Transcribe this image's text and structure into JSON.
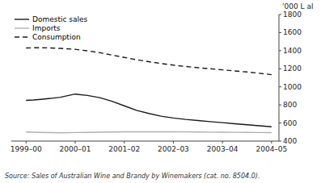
{
  "chart_data": {
    "type": "line",
    "y_label": "'000 L al",
    "source": "Source: Sales of Australian Wine and Brandy by Winemakers (cat. no. 8504.0).",
    "x": [
      0,
      0.15,
      0.3,
      0.5,
      0.7,
      1.0,
      1.25,
      1.5,
      1.75,
      2.0,
      2.25,
      2.5,
      2.75,
      3.0,
      3.25,
      3.5,
      3.75,
      4.0,
      4.25,
      4.5,
      4.75,
      5.0
    ],
    "series": [
      {
        "name": "Domestic sales",
        "color": "#1a1a1a",
        "line_style": "solid",
        "values": [
          850,
          855,
          862,
          872,
          885,
          920,
          905,
          880,
          840,
          790,
          740,
          705,
          675,
          655,
          640,
          628,
          615,
          604,
          592,
          581,
          570,
          558
        ]
      },
      {
        "name": "Imports",
        "color": "#b0b0b0",
        "line_style": "solid",
        "values": [
          500,
          498,
          496,
          494,
          492,
          495,
          496,
          498,
          500,
          502,
          503,
          503,
          503,
          502,
          501,
          500,
          499,
          498,
          497,
          496,
          495,
          494
        ]
      },
      {
        "name": "Consumption",
        "color": "#1a1a1a",
        "line_style": "dashed",
        "values": [
          1430,
          1432,
          1432,
          1430,
          1425,
          1415,
          1398,
          1378,
          1352,
          1325,
          1300,
          1278,
          1258,
          1240,
          1225,
          1212,
          1200,
          1188,
          1176,
          1164,
          1150,
          1135
        ]
      }
    ],
    "xlim": [
      -0.3,
      5.15
    ],
    "xticks": [
      {
        "value": 0,
        "label": "1999–00"
      },
      {
        "value": 1,
        "label": "2000–01"
      },
      {
        "value": 2,
        "label": "2001–02"
      },
      {
        "value": 3,
        "label": "2002–03"
      },
      {
        "value": 4,
        "label": "2003–04"
      },
      {
        "value": 5,
        "label": "2004–05"
      }
    ],
    "ylim": [
      400,
      1800
    ],
    "yticks": [
      400,
      600,
      800,
      1000,
      1200,
      1400,
      1600,
      1800
    ],
    "grid": false,
    "legend": "upper left"
  }
}
